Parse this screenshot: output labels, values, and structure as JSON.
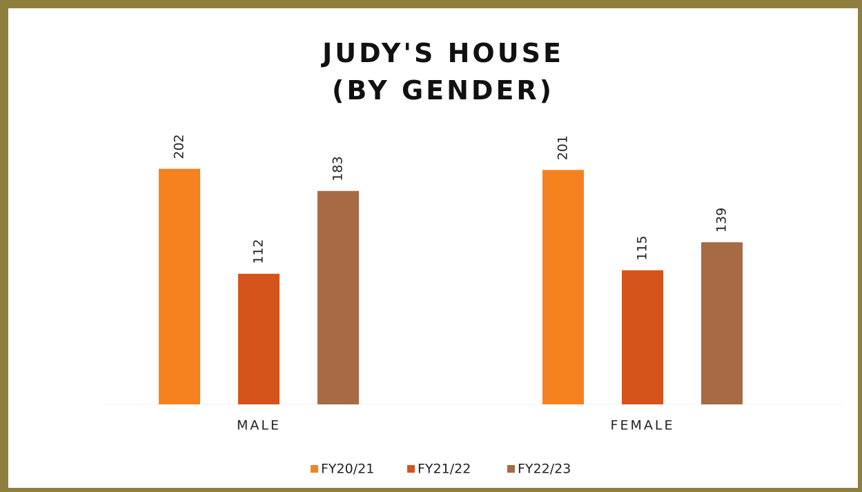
{
  "chart_data": {
    "type": "bar",
    "title": "JUDY'S HOUSE (BY GENDER)",
    "categories": [
      "MALE",
      "FEMALE"
    ],
    "series": [
      {
        "name": "FY20/21",
        "color": "#f5821f",
        "values": [
          202,
          201
        ]
      },
      {
        "name": "FY21/22",
        "color": "#d4541c",
        "values": [
          112,
          115
        ]
      },
      {
        "name": "FY22/23",
        "color": "#a86a45",
        "values": [
          183,
          139
        ]
      }
    ],
    "legend": "bottom"
  }
}
